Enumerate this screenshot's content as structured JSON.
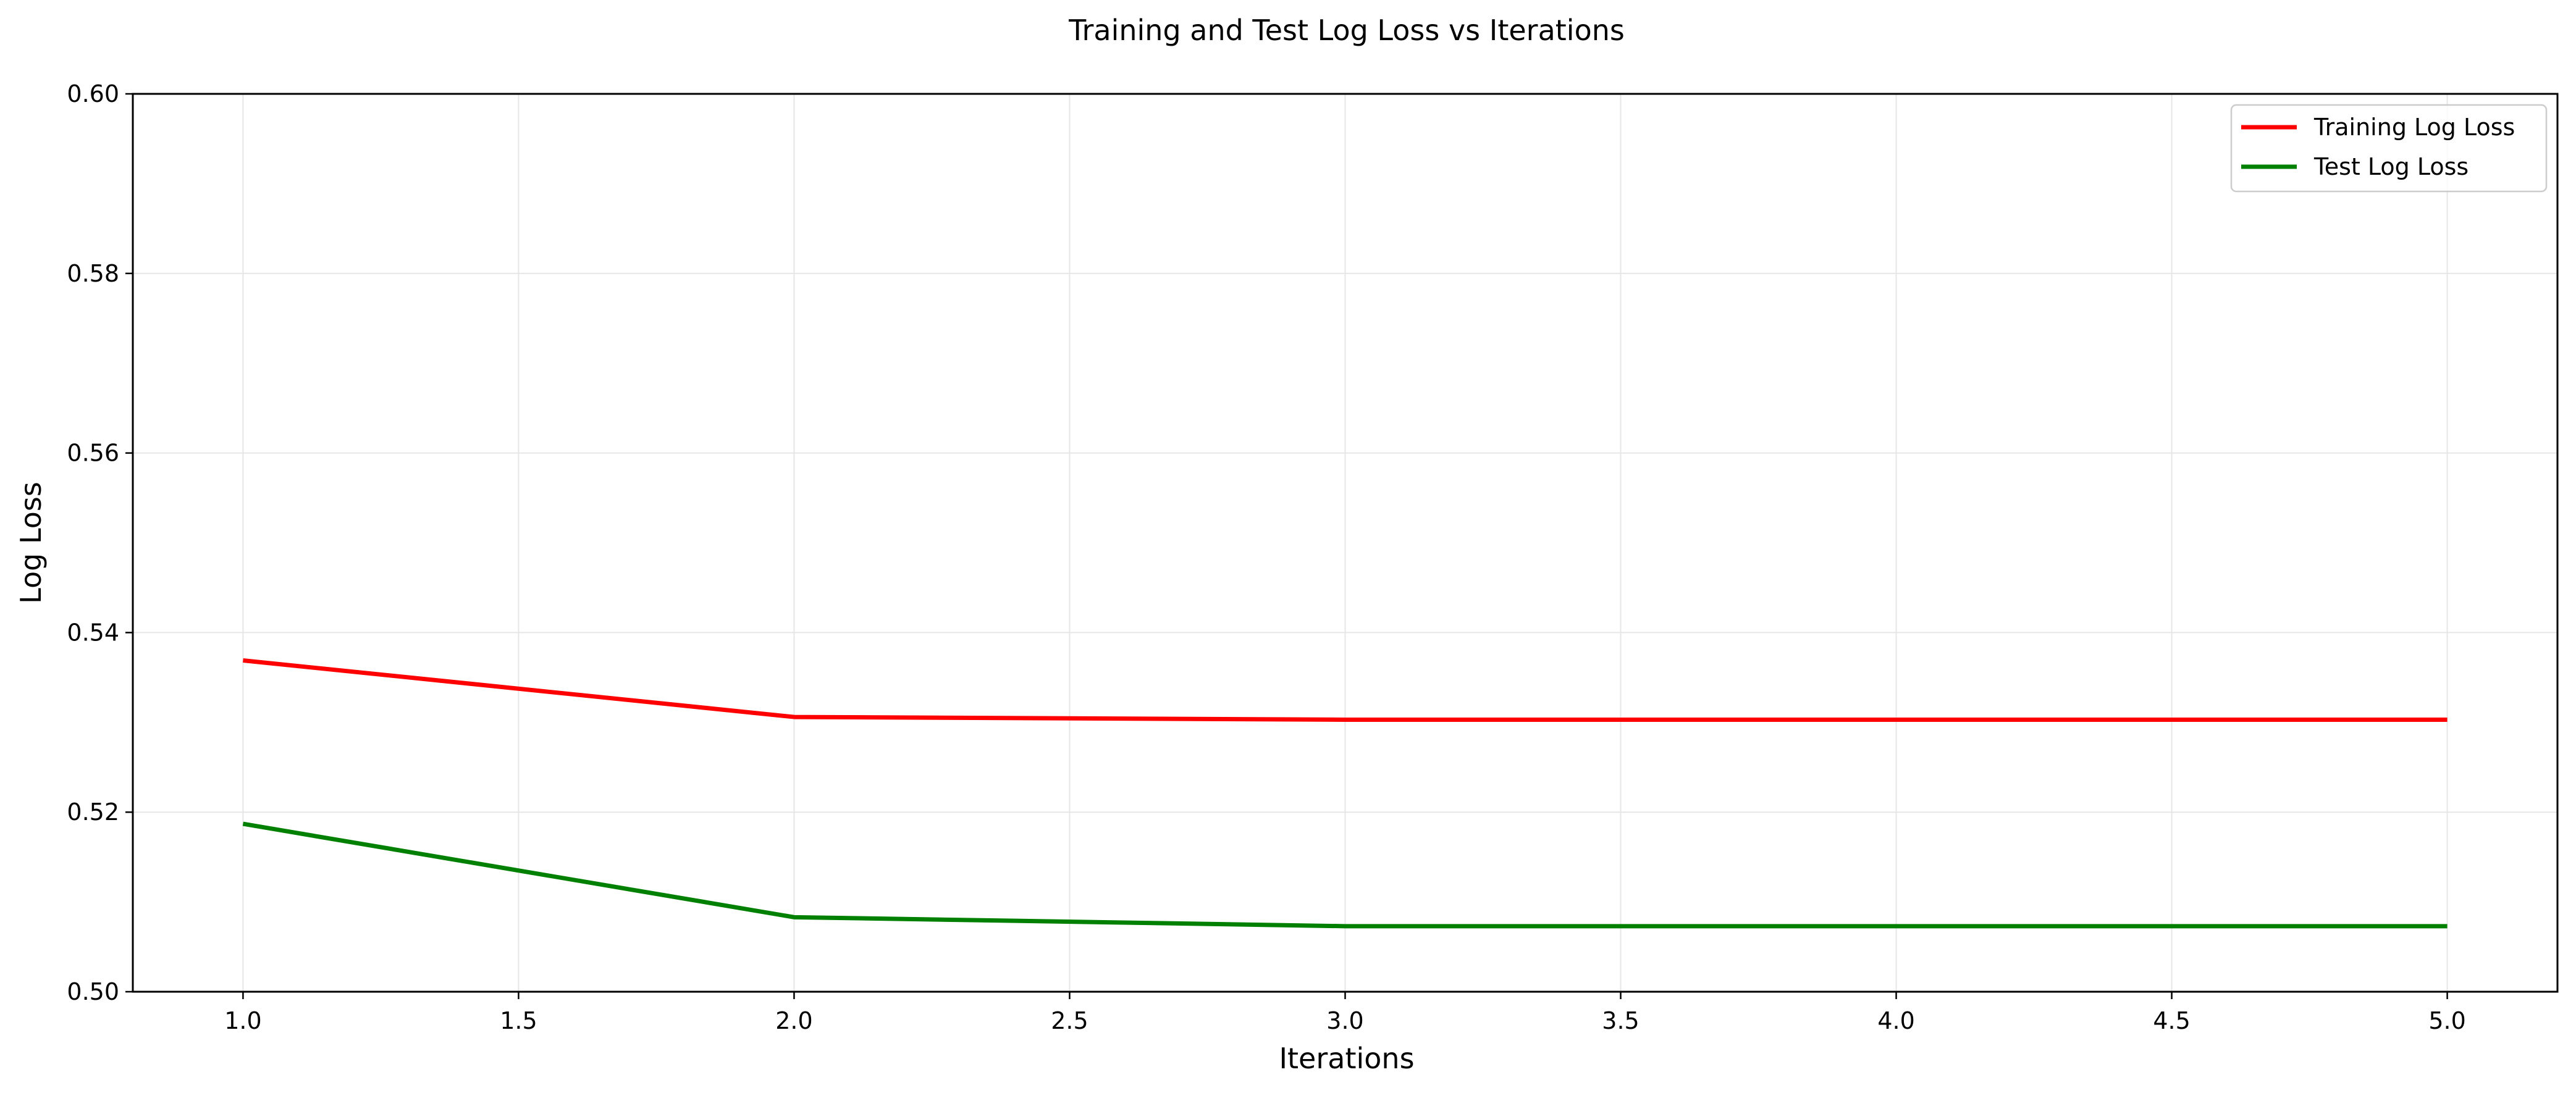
{
  "chart_data": {
    "type": "line",
    "title": "Training and Test Log Loss vs Iterations",
    "xlabel": "Iterations",
    "ylabel": "Log Loss",
    "xlim": [
      0.8,
      5.2
    ],
    "ylim": [
      0.5,
      0.6
    ],
    "x": [
      1.0,
      2.0,
      3.0,
      4.0,
      5.0
    ],
    "xticks": [
      "1.0",
      "1.5",
      "2.0",
      "2.5",
      "3.0",
      "3.5",
      "4.0",
      "4.5",
      "5.0"
    ],
    "yticks": [
      "0.50",
      "0.52",
      "0.54",
      "0.56",
      "0.58",
      "0.60"
    ],
    "grid": true,
    "legend_position": "top-right",
    "series": [
      {
        "name": "Training Log Loss",
        "color": "#ff0000",
        "values": [
          0.5369,
          0.5306,
          0.5303,
          0.5303,
          0.5303
        ]
      },
      {
        "name": "Test Log Loss",
        "color": "#008000",
        "values": [
          0.5187,
          0.5083,
          0.5073,
          0.5073,
          0.5073
        ]
      }
    ]
  }
}
